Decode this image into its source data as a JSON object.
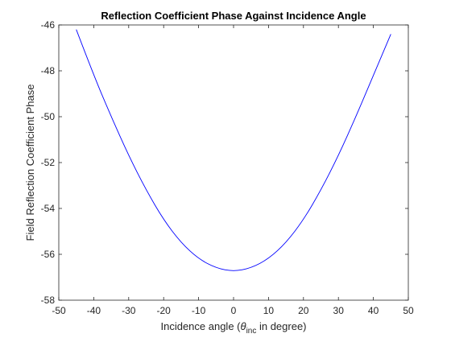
{
  "chart_data": {
    "type": "line",
    "title": "Reflection Coefficient Phase Against Incidence Angle",
    "xlabel": {
      "prefix": "Incidence angle (",
      "symbol": "θ",
      "subscript": "inc",
      "suffix": " in degree)"
    },
    "ylabel": "Field Reflection Coefficient Phase",
    "xlim": [
      -50,
      50
    ],
    "ylim": [
      -58,
      -46
    ],
    "xticks": [
      -50,
      -40,
      -30,
      -20,
      -10,
      0,
      10,
      20,
      30,
      40,
      50
    ],
    "yticks": [
      -58,
      -56,
      -54,
      -52,
      -50,
      -48,
      -46
    ],
    "xtick_labels": [
      "-50",
      "-40",
      "-30",
      "-20",
      "-10",
      "0",
      "10",
      "20",
      "30",
      "40",
      "50"
    ],
    "ytick_labels": [
      "-58",
      "-56",
      "-54",
      "-52",
      "-50",
      "-48",
      "-46"
    ],
    "grid": false,
    "series": [
      {
        "color": "#0000ff",
        "x": [
          -45,
          -40,
          -35,
          -30,
          -25,
          -20,
          -15,
          -10,
          -5,
          0,
          5,
          10,
          15,
          20,
          25,
          30,
          35,
          40,
          45
        ],
        "y": [
          -46.2,
          -48.2,
          -50.0,
          -51.7,
          -53.2,
          -54.5,
          -55.5,
          -56.2,
          -56.6,
          -56.75,
          -56.6,
          -56.2,
          -55.5,
          -54.5,
          -53.2,
          -51.7,
          -50.0,
          -48.2,
          -46.4
        ]
      }
    ]
  }
}
